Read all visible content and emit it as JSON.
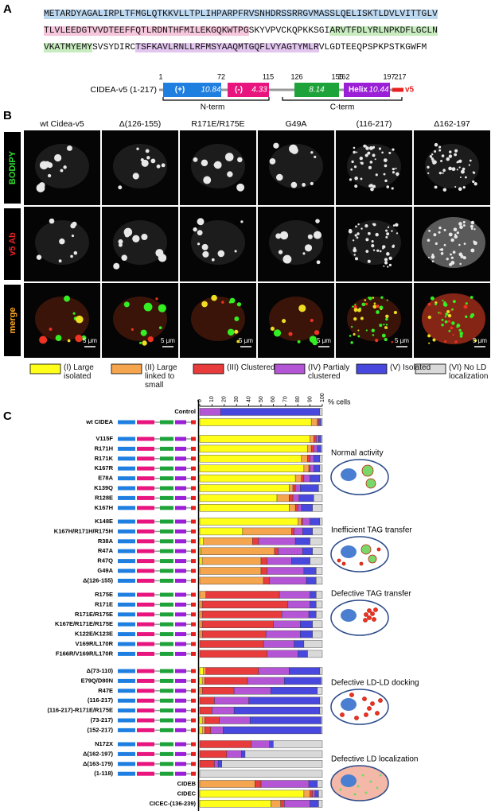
{
  "panel_labels": [
    "A",
    "B",
    "C"
  ],
  "sequence": {
    "lines": [
      [
        {
          "text": "METARDYAGALIRPLTFMGLQTKKVLLTPLIHPARPFRVSNHDRSSRRGVMASSLQELISKTLDVLVITTGLV",
          "bg": "#bcd7f0"
        }
      ],
      [
        {
          "text": "TLVLEEDGTVVDTEEFFQTLRDNTHFMILEKGQKWTPG",
          "bg": "#f6c6dc"
        },
        {
          "text": "SKYVPVCKQPKKSGI",
          "bg": "#ffffff"
        },
        {
          "text": "ARVTFDLYRLNPKDFLGCLN",
          "bg": "#c8ecc0"
        }
      ],
      [
        {
          "text": "VKATMYEMY",
          "bg": "#c8ecc0"
        },
        {
          "text": "SVSYDIRC",
          "bg": "#ffffff"
        },
        {
          "text": "TSFKAVLRNLLRFMSYAAQMTGQFLVYAGTYMLR",
          "bg": "#e3c6ef"
        },
        {
          "text": "VLGDTEEQPSPKPSTKGWFM",
          "bg": "#ffffff"
        }
      ]
    ]
  },
  "construct": {
    "name": "CIDEA-v5 (1-217)",
    "positions": [
      1,
      72,
      115,
      126,
      155,
      162,
      197,
      217
    ],
    "domain_labels": [
      "(+)",
      "10.84",
      "(-)",
      "4.33",
      "8.14",
      "Helix",
      "10.44",
      "v5"
    ],
    "regions": [
      "N-term",
      "C-term"
    ]
  },
  "micrographs": {
    "columns": [
      "wt Cidea-v5",
      "Δ(126-155)",
      "R171E/R175E",
      "G49A",
      "(116-217)",
      "Δ162-197"
    ],
    "rows": [
      "BODIPY",
      "v5 Ab",
      "merge"
    ],
    "scale_bar": "5 μm"
  },
  "chart_data": {
    "type": "bar",
    "orientation": "horizontal",
    "stacked": true,
    "xlabel": "% cells",
    "xlim": [
      0,
      100
    ],
    "xticks": [
      0,
      10,
      20,
      30,
      40,
      50,
      60,
      70,
      80,
      90,
      100
    ],
    "categories": [
      "Control",
      "wt CIDEA",
      "V115F",
      "R171H",
      "R171K",
      "K167R",
      "E78A",
      "K139Q",
      "R128E",
      "K167H",
      "K148E",
      "K167H/R171H/R175H",
      "R38A",
      "R47A",
      "R47Q",
      "G49A",
      "Δ(126-155)",
      "R175E",
      "R171E",
      "R171E/R175E",
      "K167E/R171E/R175E",
      "K122E/K123E",
      "V169R/L170R",
      "F166R/V169R/L170R",
      "Δ(73-110)",
      "E79Q/D80N",
      "R47E",
      "(116-217)",
      "(116-217)-R171E/R175E",
      "(73-217)",
      "(152-217)",
      "N172X",
      "Δ(162-197)",
      "Δ(163-179)",
      "(1-118)",
      "CIDEB",
      "CIDEC",
      "CICEC-(136-239)"
    ],
    "series": [
      {
        "name": "(I) Large isolated",
        "color": "#ffff1a",
        "values": [
          0,
          91,
          90,
          88,
          83,
          85,
          78,
          73,
          63,
          73,
          80,
          35,
          3,
          1,
          2,
          0,
          0,
          0,
          0,
          0,
          0,
          0,
          0,
          0,
          3,
          2,
          0,
          0,
          0,
          2,
          2,
          0,
          0,
          0,
          0,
          0,
          85,
          58
        ]
      },
      {
        "name": "(II) Large linked to small",
        "color": "#f5a54e",
        "values": [
          0,
          5,
          3,
          3,
          5,
          4,
          5,
          3,
          10,
          5,
          3,
          40,
          40,
          60,
          48,
          50,
          52,
          5,
          2,
          2,
          2,
          2,
          0,
          0,
          2,
          2,
          2,
          0,
          0,
          2,
          2,
          0,
          0,
          0,
          0,
          45,
          5,
          8
        ]
      },
      {
        "name": "(III) Clustered",
        "color": "#e83b3b",
        "values": [
          0,
          1,
          2,
          2,
          2,
          1,
          2,
          2,
          3,
          2,
          1,
          2,
          5,
          3,
          5,
          5,
          5,
          60,
          70,
          65,
          58,
          52,
          52,
          55,
          43,
          35,
          26,
          12,
          10,
          12,
          5,
          42,
          22,
          12,
          0,
          5,
          2,
          3
        ]
      },
      {
        "name": "(IV) Partialy clustered",
        "color": "#b455d6",
        "values": [
          17,
          1,
          2,
          3,
          3,
          3,
          5,
          4,
          5,
          3,
          6,
          7,
          30,
          20,
          20,
          30,
          30,
          25,
          18,
          22,
          22,
          28,
          25,
          25,
          25,
          30,
          30,
          28,
          18,
          25,
          10,
          15,
          12,
          3,
          0,
          39,
          2,
          21
        ]
      },
      {
        "name": "(V) Isolated",
        "color": "#4848df",
        "values": [
          81,
          1,
          2,
          3,
          5,
          5,
          8,
          15,
          12,
          9,
          8,
          8,
          12,
          8,
          15,
          10,
          8,
          5,
          5,
          6,
          10,
          10,
          8,
          8,
          25,
          30,
          38,
          58,
          70,
          58,
          80,
          3,
          3,
          3,
          0,
          7,
          3,
          7
        ]
      },
      {
        "name": "(VI) No LD localization",
        "color": "#d9d9d9",
        "values": [
          2,
          1,
          1,
          1,
          2,
          2,
          2,
          3,
          7,
          8,
          2,
          8,
          10,
          8,
          10,
          5,
          5,
          5,
          5,
          5,
          8,
          8,
          15,
          12,
          2,
          1,
          4,
          2,
          2,
          1,
          1,
          40,
          63,
          82,
          100,
          4,
          3,
          3
        ]
      }
    ],
    "annotations": [
      "Normal activity",
      "Inefficient TAG transfer",
      "Defective TAG transfer",
      "Defective LD-LD docking",
      "Defective LD localization"
    ]
  }
}
